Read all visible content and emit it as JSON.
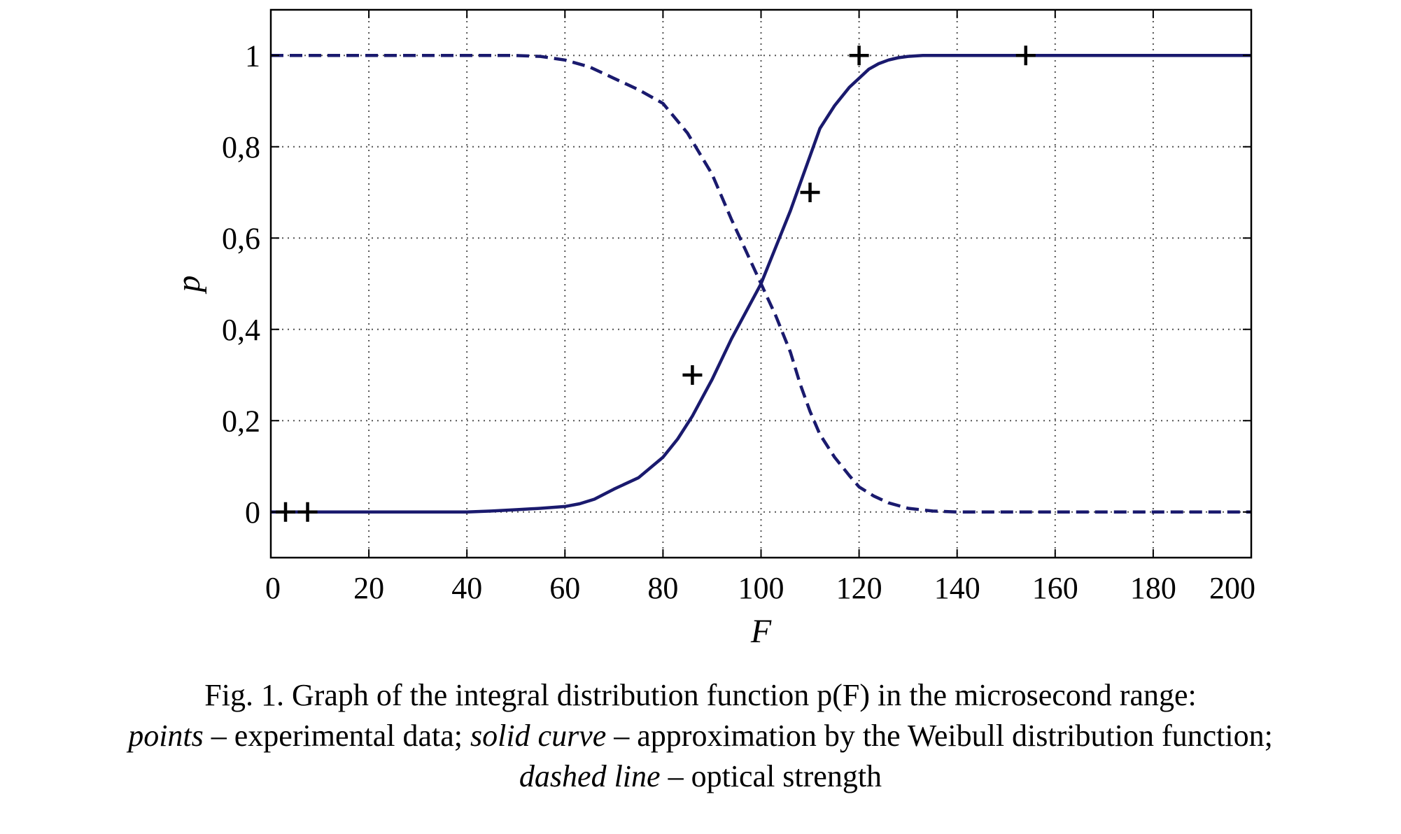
{
  "chart_data": {
    "type": "line",
    "xlabel": "F",
    "ylabel": "p",
    "xlim": [
      0,
      200
    ],
    "ylim": [
      -0.1,
      1.1
    ],
    "grid": true,
    "x_ticks": [
      "0",
      "20",
      "40",
      "60",
      "80",
      "100",
      "120",
      "140",
      "160",
      "180",
      "200"
    ],
    "y_ticks": [
      "0",
      "0,2",
      "0,4",
      "0,6",
      "0,8",
      "1"
    ],
    "y_tick_values": [
      0,
      0.2,
      0.4,
      0.6,
      0.8,
      1
    ],
    "colors": {
      "curve": "#1a1a6e",
      "points": "#000000",
      "grid": "#555555"
    },
    "series": [
      {
        "style": "solid",
        "x": [
          0,
          20,
          40,
          45,
          50,
          55,
          60,
          63,
          66,
          70,
          75,
          80,
          83,
          86,
          90,
          94,
          97,
          100,
          103,
          106,
          108,
          110,
          112,
          115,
          118,
          120,
          122,
          124,
          126,
          128,
          130,
          133,
          136,
          140,
          150,
          170,
          200
        ],
        "y": [
          0,
          0,
          0,
          0.002,
          0.005,
          0.008,
          0.012,
          0.018,
          0.028,
          0.05,
          0.075,
          0.12,
          0.16,
          0.21,
          0.29,
          0.38,
          0.44,
          0.5,
          0.58,
          0.66,
          0.72,
          0.78,
          0.84,
          0.89,
          0.93,
          0.95,
          0.97,
          0.982,
          0.99,
          0.995,
          0.998,
          1,
          1,
          1,
          1,
          1,
          1
        ]
      },
      {
        "style": "dashed",
        "x": [
          0,
          20,
          40,
          50,
          55,
          60,
          65,
          70,
          75,
          80,
          85,
          90,
          94,
          97,
          100,
          103,
          106,
          108,
          110,
          112,
          115,
          118,
          120,
          123,
          126,
          130,
          135,
          140,
          160,
          200
        ],
        "y": [
          1,
          1,
          1,
          1,
          0.998,
          0.99,
          0.975,
          0.95,
          0.925,
          0.895,
          0.83,
          0.74,
          0.64,
          0.57,
          0.5,
          0.43,
          0.35,
          0.28,
          0.22,
          0.17,
          0.12,
          0.08,
          0.055,
          0.035,
          0.02,
          0.008,
          0.002,
          0,
          0,
          0
        ]
      },
      {
        "style": "points",
        "x": [
          3,
          7.5,
          86,
          110,
          120,
          154
        ],
        "y": [
          0,
          0,
          0.3,
          0.7,
          1,
          1
        ]
      }
    ]
  },
  "caption": {
    "line1": "Fig. 1. Graph of the integral distribution function p(F) in the microsecond range:",
    "line2_em1": "points",
    "line2_t1": " – experimental data; ",
    "line2_em2": "solid curve",
    "line2_t2": " – approximation by the Weibull distribution function;",
    "line3_em": "dashed line",
    "line3_t": " – optical strength"
  }
}
